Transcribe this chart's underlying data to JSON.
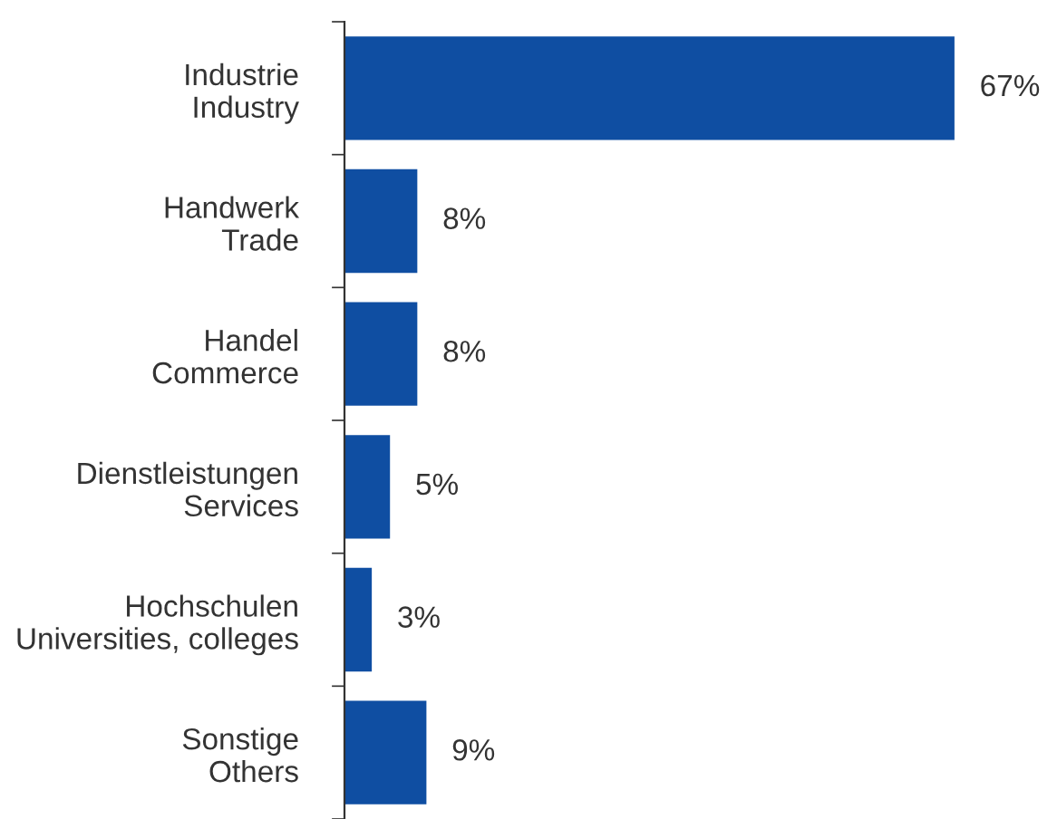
{
  "chart_data": {
    "type": "bar",
    "orientation": "horizontal",
    "categories": [
      "Industrie\nIndustry",
      "Handwerk\nTrade",
      "Handel\nCommerce",
      "Dienstleistungen\nServices",
      "Hochschulen\nUniversities, colleges",
      "Sonstige\nOthers"
    ],
    "values": [
      67,
      8,
      8,
      5,
      3,
      9
    ],
    "value_labels": [
      "67%",
      "8%",
      "8%",
      "5%",
      "3%",
      "9%"
    ],
    "color": "#0f4ea2",
    "grid": false,
    "legend": false
  }
}
